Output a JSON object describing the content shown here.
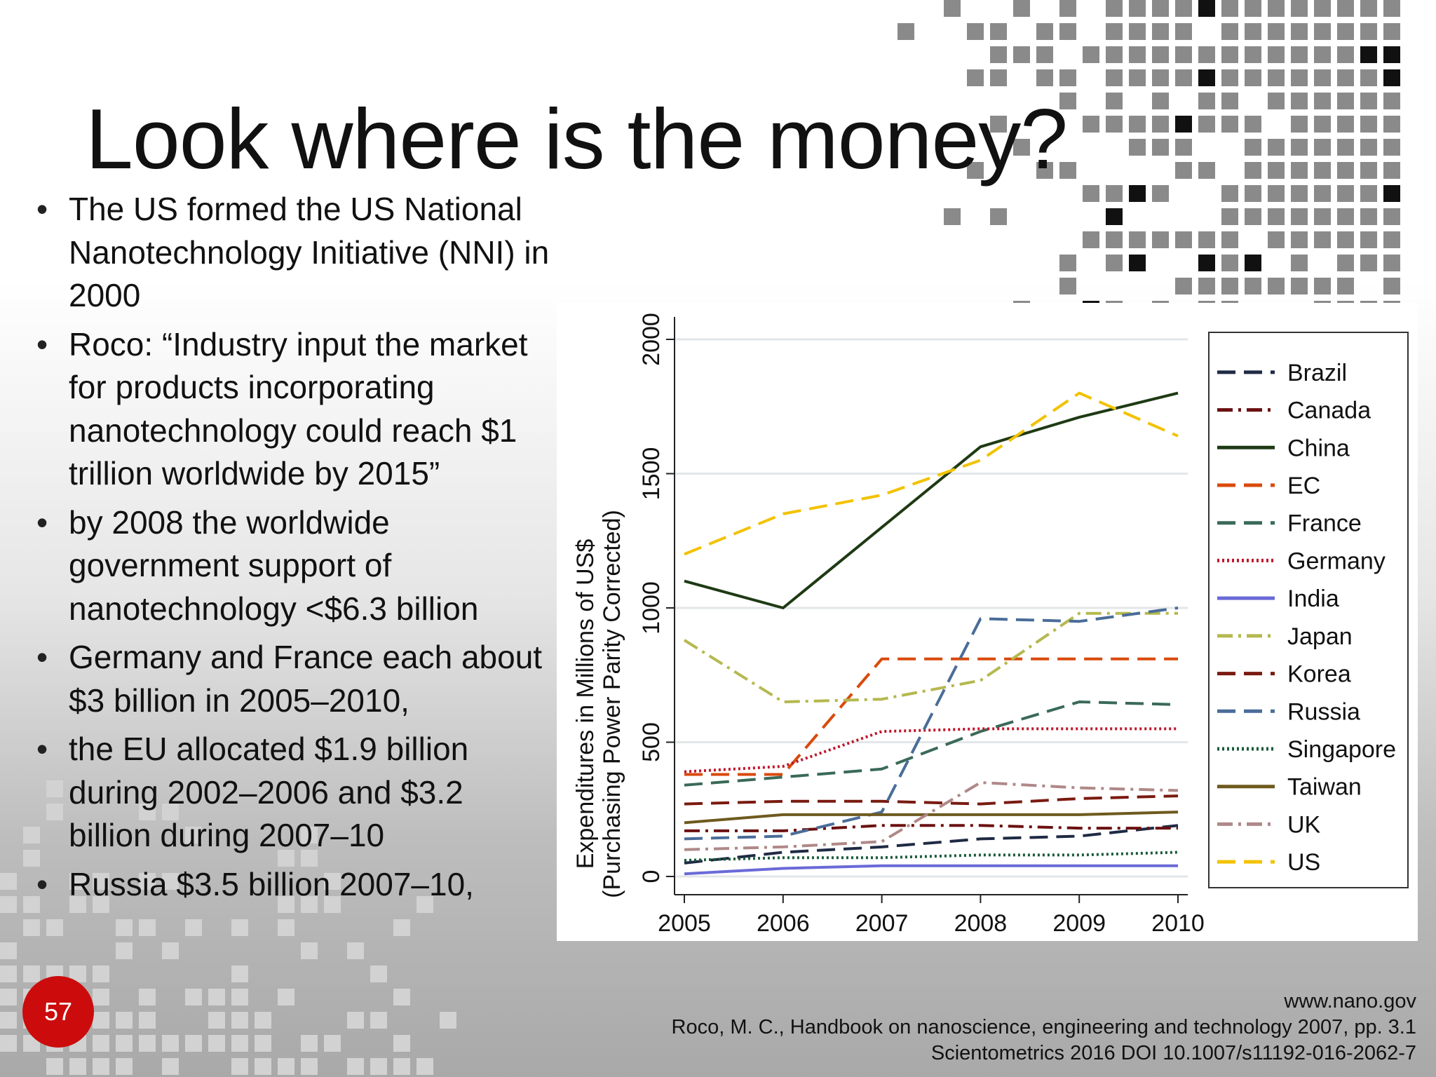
{
  "slide": {
    "title": "Look where is the money?",
    "bullets": [
      "The US formed the US National Nanotechnology Initiative (NNI) in 2000",
      "Roco: “Industry input the market for products incorporating nanotechnology could reach $1 trillion worldwide by 2015”",
      "by 2008 the worldwide government support of nanotechnology <$6.3 billion",
      "Germany and France each about $3 billion in 2005–2010,",
      "the EU allocated $1.9 billion during 2002–2006 and $3.2 billion during 2007–10",
      "Russia $3.5 billion 2007–10,"
    ],
    "page_number": "57",
    "sources": [
      "www.nano.gov",
      "Roco, M. C., Handbook on nanoscience, engineering and technology 2007, pp. 3.1",
      "Scientometrics 2016 DOI 10.1007/s11192-016-2062-7"
    ]
  },
  "chart_data": {
    "type": "line",
    "x": [
      2005,
      2006,
      2007,
      2008,
      2009,
      2010
    ],
    "xlabel": "",
    "ylabel": [
      "Expenditures in Millions of US$",
      "(Purchasing Power Parity Corrected)"
    ],
    "ylim": [
      0,
      2000
    ],
    "yticks": [
      0,
      500,
      1000,
      1500,
      2000
    ],
    "grid": "horizontal",
    "legend_position": "right",
    "series": [
      {
        "name": "Brazil",
        "color": "#1f2a44",
        "dash": "long-dash",
        "values": [
          50,
          90,
          110,
          140,
          150,
          190
        ]
      },
      {
        "name": "Canada",
        "color": "#6b1010",
        "dash": "dash-dot",
        "values": [
          170,
          170,
          190,
          190,
          180,
          180
        ]
      },
      {
        "name": "China",
        "color": "#1e3a14",
        "dash": "solid",
        "values": [
          1100,
          1000,
          1300,
          1600,
          1710,
          1800
        ]
      },
      {
        "name": "EC",
        "color": "#d94a0c",
        "dash": "long-dash",
        "values": [
          380,
          380,
          810,
          810,
          810,
          810
        ]
      },
      {
        "name": "France",
        "color": "#3a6a58",
        "dash": "long-dash",
        "values": [
          340,
          370,
          400,
          540,
          650,
          640
        ]
      },
      {
        "name": "Germany",
        "color": "#c0142a",
        "dash": "dotted",
        "values": [
          390,
          410,
          540,
          550,
          550,
          550
        ]
      },
      {
        "name": "India",
        "color": "#6a6ad8",
        "dash": "solid",
        "values": [
          10,
          30,
          40,
          40,
          40,
          40
        ]
      },
      {
        "name": "Japan",
        "color": "#b5b84e",
        "dash": "dash-dot",
        "values": [
          880,
          650,
          660,
          730,
          980,
          980
        ]
      },
      {
        "name": "Korea",
        "color": "#7a1a10",
        "dash": "long-dash",
        "values": [
          270,
          280,
          280,
          270,
          290,
          300
        ]
      },
      {
        "name": "Russia",
        "color": "#4a6d98",
        "dash": "long-dash",
        "values": [
          140,
          150,
          240,
          960,
          950,
          1000
        ]
      },
      {
        "name": "Singapore",
        "color": "#1a5a3a",
        "dash": "dotted",
        "values": [
          60,
          70,
          70,
          80,
          80,
          90
        ]
      },
      {
        "name": "Taiwan",
        "color": "#6e5a1e",
        "dash": "solid",
        "values": [
          200,
          230,
          230,
          230,
          230,
          240
        ]
      },
      {
        "name": "UK",
        "color": "#b08888",
        "dash": "dash-dot",
        "values": [
          100,
          110,
          130,
          350,
          330,
          320
        ]
      },
      {
        "name": "US",
        "color": "#f2c200",
        "dash": "long-dash",
        "values": [
          1200,
          1350,
          1420,
          1550,
          1800,
          1640
        ]
      }
    ]
  }
}
